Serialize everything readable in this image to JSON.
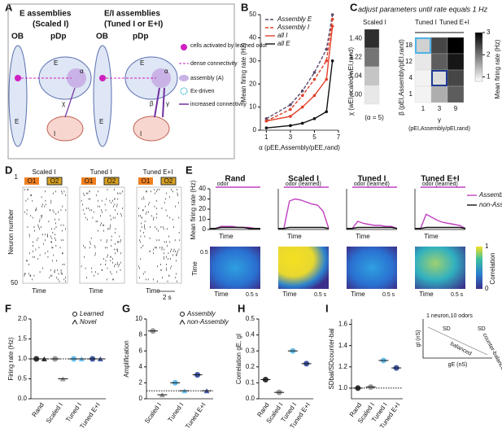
{
  "panels": {
    "labels": [
      "A",
      "B",
      "C",
      "D",
      "E",
      "F",
      "G",
      "H",
      "I"
    ],
    "a": {
      "title_e": "E assemblies",
      "sub_e": "(Scaled I)",
      "title_ei": "E/I assemblies",
      "sub_ei": "(Tuned I or E+I)",
      "ob": "OB",
      "pdp": "pDp",
      "e": "E",
      "i": "I",
      "alpha": "α",
      "beta": "β",
      "chi": "χ",
      "gamma": "γ",
      "legend": [
        "cells activated by learned odor",
        "dense connectivity",
        "assembly (A)",
        "Ex-driven",
        "increased connectivity"
      ]
    },
    "c": {
      "title": "adjust parameters until rate equals 1 Hz",
      "scaled": "Scaled I",
      "tuned_i": "Tuned I",
      "tuned_ei": "Tuned E+I",
      "chi_label": "χ (wEI,scaled/wEI,rand)",
      "alpha_note": "(α = 5)",
      "beta_label": "β (pEI,Assembly/pEI,rand)",
      "gamma": "γ",
      "gamma_label": "(pEI,Assembly/pEI,rand)",
      "cbar_label": "Mean firing rate (Hz)"
    },
    "d": {
      "titles": [
        "Scaled I",
        "Tuned I",
        "Tuned E+I"
      ],
      "o1": "O1",
      "o2": "O2",
      "ylabel": "Neuron number",
      "first": "1",
      "last": "50",
      "time": "Time",
      "scale": "2 s"
    },
    "e": {
      "ylabel": "Mean firing rate (Hz)",
      "time": "Time",
      "scale": "0.5 s",
      "map_time": "Time",
      "corr_label": "Correlation",
      "corr_cticks": [
        0,
        1
      ]
    }
  },
  "chart_data": [
    {
      "type": "line",
      "x": [
        1,
        3,
        4,
        5,
        6,
        6.5
      ],
      "xlim": [
        0.5,
        7
      ],
      "xticks": [
        1,
        3,
        5,
        7
      ],
      "ylim": [
        0,
        50
      ],
      "yticks": [
        0,
        10,
        20,
        30,
        40,
        50
      ],
      "ylabel": "Mean firing rate (Hz)",
      "xlabel": "α (pEE,Assembly/pEE,rand)",
      "series": [
        {
          "name": "Assembly E",
          "color": "#5a4a6a",
          "dash": true,
          "values": [
            5,
            11,
            17,
            25,
            35,
            50
          ]
        },
        {
          "name": "Assembly I",
          "color": "#e0402a",
          "dash": true,
          "values": [
            4,
            9,
            15,
            22,
            30,
            48
          ]
        },
        {
          "name": "all I",
          "color": "#e0402a",
          "values": [
            4,
            6,
            10,
            15,
            22,
            45
          ]
        },
        {
          "name": "all E",
          "color": "#111111",
          "values": [
            1,
            2,
            3,
            5,
            8,
            30
          ]
        }
      ]
    },
    {
      "type": "heatmap",
      "rows": [
        "1.40",
        "1.22",
        "1.04",
        "1.00"
      ],
      "values": [
        [
          2.6
        ],
        [
          2.0
        ],
        [
          1.3
        ],
        [
          1.0
        ]
      ],
      "clim": [
        0.8,
        3
      ]
    },
    {
      "type": "heatmap",
      "rows": [
        18,
        12,
        4,
        1
      ],
      "cols": [
        1,
        3,
        9
      ],
      "values": [
        [
          1.2,
          2.4,
          3.0
        ],
        [
          1.0,
          2.2,
          2.8
        ],
        [
          0.9,
          1.1,
          2.4
        ],
        [
          0.9,
          1.5,
          2.2
        ]
      ],
      "clim": [
        0.8,
        3
      ],
      "cticks": [
        1,
        2,
        3
      ]
    },
    {
      "type": "line",
      "title": "Rand",
      "annotation": "odor",
      "x": [
        0,
        1,
        2,
        3,
        4,
        5,
        6,
        7,
        8,
        9
      ],
      "xlim": [
        0,
        9
      ],
      "ylim": [
        0,
        40
      ],
      "yticks": [
        0,
        10,
        20,
        30,
        40
      ],
      "series": [
        {
          "color": "#c040c0",
          "values": [
            1,
            1,
            3,
            3,
            3,
            2,
            2,
            2,
            1,
            1
          ]
        },
        {
          "color": "#111111",
          "values": [
            1,
            1,
            2,
            2,
            2,
            2,
            2,
            1,
            1,
            1
          ]
        }
      ]
    },
    {
      "type": "line",
      "title": "Scaled I",
      "annotation": "odor (learned)",
      "x": [
        0,
        1,
        2,
        3,
        4,
        5,
        6,
        7,
        8,
        9
      ],
      "xlim": [
        0,
        9
      ],
      "ylim": [
        0,
        40
      ],
      "series": [
        {
          "color": "#c040c0",
          "values": [
            1,
            1,
            28,
            30,
            29,
            27,
            25,
            24,
            18,
            1
          ]
        },
        {
          "color": "#111111",
          "values": [
            1,
            1,
            2,
            2,
            2,
            2,
            2,
            2,
            2,
            1
          ]
        }
      ]
    },
    {
      "type": "line",
      "title": "Tuned I",
      "annotation": "odor (learned)",
      "x": [
        0,
        1,
        2,
        3,
        4,
        5,
        6,
        7,
        8,
        9
      ],
      "xlim": [
        0,
        9
      ],
      "ylim": [
        0,
        40
      ],
      "series": [
        {
          "color": "#c040c0",
          "values": [
            1,
            1,
            8,
            6,
            5,
            4,
            4,
            3,
            3,
            1
          ]
        },
        {
          "color": "#111111",
          "values": [
            1,
            1,
            2,
            2,
            2,
            2,
            2,
            2,
            2,
            1
          ]
        }
      ]
    },
    {
      "type": "line",
      "title": "Tuned E+I",
      "annotation": "odor (learned)",
      "x": [
        0,
        1,
        2,
        3,
        4,
        5,
        6,
        7,
        8,
        9
      ],
      "xlim": [
        0,
        9
      ],
      "ylim": [
        0,
        40
      ],
      "series": [
        {
          "name": "Assembly",
          "color": "#c040c0",
          "values": [
            1,
            1,
            15,
            12,
            9,
            7,
            6,
            5,
            4,
            1
          ]
        },
        {
          "name": "non-Assembly",
          "color": "#111111",
          "values": [
            1,
            1,
            2,
            2,
            2,
            2,
            2,
            2,
            2,
            1
          ]
        }
      ]
    },
    {
      "type": "dot",
      "ylabel": "Firing rate (Hz)",
      "categories": [
        "Rand",
        "Scaled I",
        "Tuned I",
        "Tuned E+I"
      ],
      "colors": [
        "#111111",
        "#8a8a8a",
        "#4fb3e8",
        "#1f3a93"
      ],
      "ylim": [
        0,
        2
      ],
      "yticks": [
        {
          "value": 0,
          "label": "0.0"
        },
        0.5,
        {
          "value": 1,
          "label": "1.0"
        },
        1.5,
        {
          "value": 2,
          "label": "2.0"
        }
      ],
      "reference_line": 1,
      "series": [
        {
          "name": "Learned",
          "marker": "circle",
          "values": [
            1.0,
            1.0,
            1.0,
            1.0
          ]
        },
        {
          "name": "Novel",
          "marker": "caret",
          "values": [
            1.0,
            0.5,
            1.0,
            1.0
          ]
        }
      ]
    },
    {
      "type": "dot",
      "ylabel": "Amplification",
      "categories": [
        "Scaled I",
        "Tuned I",
        "Tuned E+I"
      ],
      "colors": [
        "#8a8a8a",
        "#4fb3e8",
        "#1f3a93"
      ],
      "ylim": [
        0,
        10
      ],
      "yticks": [
        0,
        2,
        4,
        6,
        8,
        10
      ],
      "reference_line": 1,
      "series": [
        {
          "name": "Assembly",
          "marker": "circle",
          "values": [
            8.5,
            2.0,
            3.0
          ]
        },
        {
          "name": "non-Assembly",
          "marker": "caret",
          "values": [
            0.5,
            1.0,
            1.0
          ]
        }
      ]
    },
    {
      "type": "dot",
      "ylabel": "Correlation gE, gI",
      "categories": [
        "Rand",
        "Scaled I",
        "Tuned I",
        "Tuned E+I"
      ],
      "colors": [
        "#111111",
        "#8a8a8a",
        "#4fb3e8",
        "#1f3a93"
      ],
      "ylim": [
        0,
        0.5
      ],
      "yticks": [
        {
          "value": 0,
          "label": "0.0"
        },
        0.1,
        0.2,
        0.3,
        0.4,
        0.5
      ],
      "series": [
        {
          "marker": "circle",
          "values": [
            0.12,
            0.04,
            0.3,
            0.22
          ]
        }
      ]
    },
    {
      "type": "dot",
      "ylabel": "SDbal/SDcounter-bal",
      "categories": [
        "Rand",
        "Scaled I",
        "Tuned I",
        "Tuned E+I"
      ],
      "colors": [
        "#111111",
        "#8a8a8a",
        "#4fb3e8",
        "#1f3a93"
      ],
      "ylim": [
        0.9,
        1.65
      ],
      "yticks": [
        {
          "value": 1,
          "label": "1.0"
        },
        1.2,
        1.4,
        1.6
      ],
      "reference_line": 1,
      "series": [
        {
          "marker": "circle",
          "values": [
            1.0,
            1.01,
            1.26,
            1.19
          ]
        }
      ],
      "inset": {
        "note": "1 neuron,10 odors",
        "ylabel": "gI (nS)",
        "xlabel": "gE (nS)",
        "sd": "SD",
        "counter": "counter-balanced",
        "balanced": "balanced"
      }
    }
  ]
}
